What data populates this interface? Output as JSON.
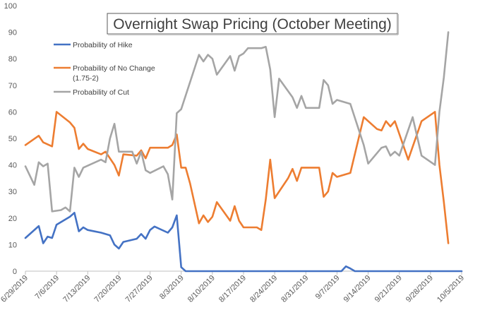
{
  "chart_data": {
    "type": "line",
    "title": "Overnight Swap Pricing (October Meeting)",
    "xlabel": "",
    "ylabel": "",
    "ylim": [
      0,
      100
    ],
    "yticks": [
      0,
      10,
      20,
      30,
      40,
      50,
      60,
      70,
      80,
      90,
      100
    ],
    "x_start": "6/29/2019",
    "x_end": "10/5/2019",
    "x_tick_labels": [
      "6/29/2019",
      "7/6/2019",
      "7/13/2019",
      "7/20/2019",
      "7/27/2019",
      "8/3/2019",
      "8/10/2019",
      "8/17/2019",
      "8/24/2019",
      "8/31/2019",
      "9/7/2019",
      "9/14/2019",
      "9/21/2019",
      "9/28/2019",
      "10/5/2019"
    ],
    "legend_position": "top-left",
    "gridlines": false,
    "series": [
      {
        "name": "Probability of Hike",
        "color": "#4472C4",
        "points": [
          [
            0,
            12.5
          ],
          [
            3,
            17
          ],
          [
            4,
            10.5
          ],
          [
            5,
            13
          ],
          [
            6,
            12.5
          ],
          [
            7,
            17.5
          ],
          [
            10,
            20.5
          ],
          [
            11,
            22
          ],
          [
            12,
            15
          ],
          [
            13,
            16.5
          ],
          [
            14,
            15.5
          ],
          [
            17,
            14.5
          ],
          [
            19,
            13.5
          ],
          [
            20,
            10
          ],
          [
            21,
            8.5
          ],
          [
            22,
            11
          ],
          [
            25,
            12.2
          ],
          [
            26,
            14
          ],
          [
            27,
            12.2
          ],
          [
            28,
            15.5
          ],
          [
            29,
            16.8
          ],
          [
            32,
            14.5
          ],
          [
            33,
            16.5
          ],
          [
            34,
            21
          ],
          [
            35,
            1.5
          ],
          [
            36,
            0
          ],
          [
            71,
            0
          ],
          [
            72,
            1.8
          ],
          [
            73,
            1
          ],
          [
            74,
            0
          ],
          [
            98,
            0
          ]
        ]
      },
      {
        "name": "Probability of No Change (1.75-2)",
        "color": "#ED7D31",
        "points": [
          [
            0,
            47.5
          ],
          [
            3,
            51
          ],
          [
            4,
            48.5
          ],
          [
            6,
            47
          ],
          [
            7,
            60
          ],
          [
            10,
            56
          ],
          [
            11,
            54
          ],
          [
            12,
            46
          ],
          [
            13,
            48
          ],
          [
            14,
            46
          ],
          [
            17,
            44
          ],
          [
            18,
            45
          ],
          [
            20,
            40
          ],
          [
            21,
            36
          ],
          [
            22,
            44
          ],
          [
            25,
            43.5
          ],
          [
            26,
            45.5
          ],
          [
            27,
            42.5
          ],
          [
            28,
            46.5
          ],
          [
            32,
            46.5
          ],
          [
            33,
            47.5
          ],
          [
            34,
            51.5
          ],
          [
            35,
            39
          ],
          [
            36,
            39
          ],
          [
            37,
            33
          ],
          [
            39,
            18
          ],
          [
            40,
            21
          ],
          [
            41,
            18.5
          ],
          [
            42,
            20.5
          ],
          [
            43,
            26
          ],
          [
            46,
            19
          ],
          [
            47,
            24.5
          ],
          [
            48,
            19
          ],
          [
            49,
            16.5
          ],
          [
            52,
            16.5
          ],
          [
            53,
            15.5
          ],
          [
            54,
            27
          ],
          [
            55,
            42
          ],
          [
            56,
            27.5
          ],
          [
            59,
            35
          ],
          [
            60,
            38.5
          ],
          [
            61,
            34
          ],
          [
            62,
            39
          ],
          [
            66,
            39
          ],
          [
            67,
            28
          ],
          [
            68,
            30
          ],
          [
            69,
            37
          ],
          [
            70,
            35.5
          ],
          [
            73,
            37
          ],
          [
            76,
            58
          ],
          [
            79,
            53.5
          ],
          [
            80,
            53
          ],
          [
            81,
            56.5
          ],
          [
            82,
            54.5
          ],
          [
            83,
            56.5
          ],
          [
            86,
            42
          ],
          [
            89,
            56.5
          ],
          [
            92,
            60
          ],
          [
            93,
            40
          ],
          [
            94,
            26
          ],
          [
            95,
            10.5
          ]
        ]
      },
      {
        "name": "Probability of Cut",
        "color": "#A5A5A5",
        "points": [
          [
            0,
            39.5
          ],
          [
            2,
            32.5
          ],
          [
            3,
            41
          ],
          [
            4,
            39.5
          ],
          [
            5,
            40.5
          ],
          [
            6,
            22.5
          ],
          [
            8,
            23
          ],
          [
            9,
            24
          ],
          [
            10,
            22.5
          ],
          [
            11,
            39
          ],
          [
            12,
            35.5
          ],
          [
            13,
            39
          ],
          [
            17,
            42
          ],
          [
            18,
            41
          ],
          [
            19,
            50
          ],
          [
            20,
            55.5
          ],
          [
            21,
            45
          ],
          [
            24,
            45
          ],
          [
            25,
            40.5
          ],
          [
            26,
            45
          ],
          [
            27,
            38
          ],
          [
            28,
            37
          ],
          [
            31,
            39.5
          ],
          [
            32,
            36.5
          ],
          [
            33,
            27
          ],
          [
            34,
            59.5
          ],
          [
            35,
            61
          ],
          [
            39,
            81.5
          ],
          [
            40,
            79
          ],
          [
            41,
            81.5
          ],
          [
            42,
            80
          ],
          [
            43,
            74
          ],
          [
            46,
            81
          ],
          [
            47,
            75.5
          ],
          [
            48,
            81
          ],
          [
            49,
            82
          ],
          [
            50,
            84
          ],
          [
            53,
            84
          ],
          [
            54,
            84.5
          ],
          [
            55,
            76
          ],
          [
            56,
            58
          ],
          [
            57,
            72.5
          ],
          [
            60,
            65.5
          ],
          [
            61,
            61.5
          ],
          [
            62,
            66
          ],
          [
            63,
            61.5
          ],
          [
            65,
            61.5
          ],
          [
            66,
            61.5
          ],
          [
            67,
            72
          ],
          [
            68,
            70
          ],
          [
            69,
            63
          ],
          [
            70,
            64.5
          ],
          [
            73,
            63
          ],
          [
            76,
            47.5
          ],
          [
            77,
            40.5
          ],
          [
            80,
            46.5
          ],
          [
            81,
            47
          ],
          [
            82,
            43.5
          ],
          [
            83,
            45
          ],
          [
            84,
            43.5
          ],
          [
            87,
            58
          ],
          [
            89,
            43.5
          ],
          [
            92,
            40
          ],
          [
            93,
            60
          ],
          [
            94,
            73
          ],
          [
            95,
            90
          ]
        ]
      }
    ]
  }
}
